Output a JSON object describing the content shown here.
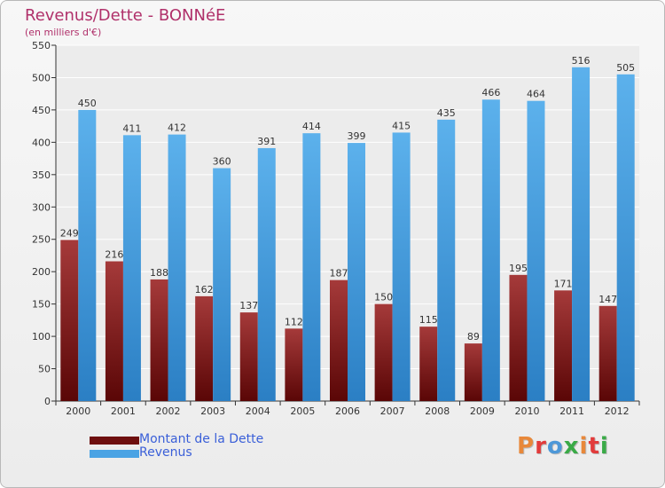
{
  "chart_data": {
    "type": "bar",
    "title": "Revenus/Dette - BONNéE",
    "subtitle": "(en milliers d'€)",
    "categories": [
      "2000",
      "2001",
      "2002",
      "2003",
      "2004",
      "2005",
      "2006",
      "2007",
      "2008",
      "2009",
      "2010",
      "2011",
      "2012"
    ],
    "series": [
      {
        "name": "Montant de la Dette",
        "color": "#7a1a1a",
        "values": [
          249,
          216,
          188,
          162,
          137,
          112,
          187,
          150,
          115,
          89,
          195,
          171,
          147
        ]
      },
      {
        "name": "Revenus",
        "color": "#4aa3e4",
        "values": [
          450,
          411,
          412,
          360,
          391,
          414,
          399,
          415,
          435,
          466,
          464,
          516,
          505
        ]
      }
    ],
    "ylim": [
      0,
      550
    ],
    "yticks": [
      0,
      50,
      100,
      150,
      200,
      250,
      300,
      350,
      400,
      450,
      500,
      550
    ],
    "grid": true,
    "legend_position": "bottom-left"
  },
  "branding": {
    "logo_letters": [
      "P",
      "r",
      "o",
      "x",
      "i",
      "t",
      "i"
    ],
    "logo_colors": [
      "#e8883a",
      "#e23b3b",
      "#4d98d8",
      "#3aaa47",
      "#e8883a",
      "#e23b3b",
      "#3aaa47"
    ]
  }
}
